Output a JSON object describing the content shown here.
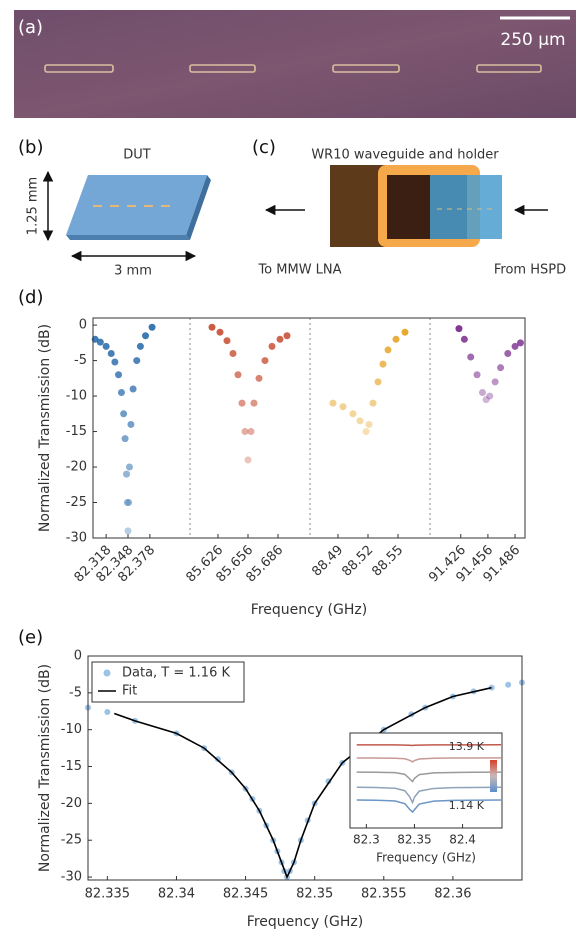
{
  "panel_labels": [
    "(a)",
    "(b)",
    "(c)",
    "(d)",
    "(e)"
  ],
  "micrograph": {
    "scale_bar": "250 μm"
  },
  "diagram_b": {
    "chip": "DUT",
    "height": "1.25 mm",
    "width": "3 mm"
  },
  "diagram_c": {
    "title": "WR10 waveguide and holder",
    "left": "To MMW LNA",
    "right": "From HSPD"
  },
  "chart_data": [
    {
      "type": "scatter",
      "y_label": "Normalized Transmission (dB)",
      "x_label": "Frequency (GHz)",
      "ylim": [
        -30,
        1
      ],
      "yticks": [
        0,
        -5,
        -10,
        -15,
        -20,
        -25,
        -30
      ],
      "panels": [
        {
          "xlim": [
            82.3,
            82.433
          ],
          "xticks": [
            82.318,
            82.348,
            82.378
          ],
          "series": [
            {
              "color": "#2f6fad",
              "x": [
                82.303,
                82.31,
                82.318,
                82.325,
                82.33,
                82.335,
                82.339,
                82.342,
                82.344,
                82.346,
                82.347,
                82.348,
                82.349,
                82.35,
                82.352,
                82.355,
                82.36,
                82.365,
                82.372,
                82.381
              ],
              "values": [
                -2.0,
                -2.4,
                -3.0,
                -4.0,
                -5.2,
                -7.0,
                -9.5,
                -12.5,
                -16,
                -21,
                -25,
                -29,
                -25,
                -20,
                -14,
                -9,
                -5,
                -3,
                -1.5,
                -0.3
              ]
            }
          ]
        },
        {
          "xlim": [
            85.598,
            85.718
          ],
          "xticks": [
            85.626,
            85.656,
            85.686
          ],
          "series": [
            {
              "color": "#c8533a",
              "x": [
                85.62,
                85.628,
                85.635,
                85.641,
                85.646,
                85.65,
                85.653,
                85.656,
                85.659,
                85.662,
                85.667,
                85.673,
                85.68,
                85.688,
                85.695
              ],
              "values": [
                -0.3,
                -1.0,
                -2.2,
                -4,
                -7,
                -11,
                -15,
                -19,
                -15,
                -11,
                -7.5,
                -5,
                -3,
                -2,
                -1.5
              ]
            }
          ]
        },
        {
          "xlim": [
            88.462,
            88.582
          ],
          "xticks": [
            88.49,
            88.52,
            88.55
          ],
          "series": [
            {
              "color": "#e6a526",
              "x": [
                88.485,
                88.495,
                88.505,
                88.512,
                88.518,
                88.521,
                88.525,
                88.53,
                88.535,
                88.54,
                88.548,
                88.557
              ],
              "values": [
                -11,
                -11.5,
                -12.5,
                -13.5,
                -15,
                -14,
                -11,
                -8,
                -5.5,
                -3.5,
                -2,
                -1
              ]
            }
          ]
        },
        {
          "xlim": [
            91.392,
            91.497
          ],
          "xticks": [
            91.426,
            91.456,
            91.486
          ],
          "series": [
            {
              "color": "#7b2d8e",
              "x": [
                91.424,
                91.43,
                91.437,
                91.444,
                91.45,
                91.454,
                91.458,
                91.464,
                91.47,
                91.478,
                91.486,
                91.492
              ],
              "values": [
                -0.5,
                -2,
                -4.5,
                -7,
                -9.5,
                -10.5,
                -10,
                -8,
                -6,
                -4,
                -3,
                -2.5
              ]
            }
          ]
        }
      ]
    },
    {
      "type": "scatter",
      "y_label": "Normalized Transmission (dB)",
      "x_label": "Frequency (GHz)",
      "xlim": [
        82.3336,
        82.365
      ],
      "xticks": [
        82.335,
        82.34,
        82.345,
        82.35,
        82.355,
        82.36
      ],
      "ylim": [
        -30.4,
        0
      ],
      "yticks": [
        0,
        -5,
        -10,
        -15,
        -20,
        -25,
        -30
      ],
      "legend": "upper left",
      "series": [
        {
          "name": "Data, T = 1.16 K",
          "style": "markers",
          "color": "#9cc3e6",
          "x": [
            82.3336,
            82.335,
            82.337,
            82.34,
            82.342,
            82.343,
            82.344,
            82.345,
            82.3455,
            82.346,
            82.3465,
            82.347,
            82.3473,
            82.3476,
            82.3478,
            82.348,
            82.3482,
            82.3485,
            82.349,
            82.3495,
            82.35,
            82.351,
            82.352,
            82.353,
            82.355,
            82.357,
            82.358,
            82.36,
            82.3615,
            82.3628,
            82.364,
            82.365
          ],
          "values": [
            -7.0,
            -7.6,
            -8.8,
            -10.5,
            -12.5,
            -14,
            -15.8,
            -18,
            -19.4,
            -21,
            -23,
            -25,
            -26.5,
            -28,
            -29.2,
            -30,
            -29.2,
            -28,
            -25,
            -22.3,
            -20,
            -17,
            -14.5,
            -12.6,
            -10,
            -7.9,
            -7,
            -5.5,
            -4.8,
            -4.3,
            -3.9,
            -3.6
          ]
        },
        {
          "name": "Fit",
          "style": "line",
          "color": "#000000",
          "x": [
            82.3355,
            82.337,
            82.34,
            82.342,
            82.344,
            82.345,
            82.346,
            82.347,
            82.3476,
            82.348,
            82.3485,
            82.349,
            82.35,
            82.352,
            82.355,
            82.358,
            82.36,
            82.3628
          ],
          "values": [
            -7.8,
            -8.8,
            -10.5,
            -12.5,
            -15.8,
            -18,
            -21,
            -25,
            -28,
            -30,
            -28,
            -25,
            -20,
            -14.5,
            -10,
            -7,
            -5.5,
            -4.3
          ]
        }
      ]
    },
    {
      "type": "line",
      "x_label": "Frequency (GHz)",
      "xlim": [
        82.283,
        82.441
      ],
      "xticks": [
        82.3,
        82.35,
        82.4
      ],
      "ylim": [
        -40,
        0
      ],
      "colorbar": {
        "max_label": "13.9 K",
        "min_label": "1.14 K"
      },
      "x": [
        82.29,
        82.31,
        82.33,
        82.34,
        82.345,
        82.348,
        82.35,
        82.355,
        82.37,
        82.39,
        82.41,
        82.44
      ],
      "series": [
        {
          "color": "#c0584a",
          "values": [
            -4.7,
            -4.7,
            -4.7,
            -4.8,
            -4.9,
            -5.0,
            -4.9,
            -4.8,
            -4.7,
            -4.7,
            -4.7,
            -4.6
          ]
        },
        {
          "color": "#c89a95",
          "values": [
            -11.6,
            -11.6,
            -11.7,
            -12.0,
            -12.8,
            -13.6,
            -12.9,
            -12.1,
            -11.7,
            -11.6,
            -11.6,
            -11.5
          ]
        },
        {
          "color": "#9a9a9a",
          "values": [
            -19.0,
            -19.1,
            -19.3,
            -20.2,
            -22.5,
            -24.0,
            -22.3,
            -20.3,
            -19.4,
            -19.2,
            -19.1,
            -19.0
          ]
        },
        {
          "color": "#8ea3b8",
          "values": [
            -27.0,
            -27.1,
            -27.5,
            -28.8,
            -32.0,
            -35.0,
            -32.2,
            -29.0,
            -27.6,
            -27.2,
            -27.1,
            -27.0
          ]
        },
        {
          "color": "#6b96c6",
          "values": [
            -33.7,
            -33.8,
            -34.2,
            -35.6,
            -38.6,
            -40.0,
            -38.8,
            -35.8,
            -34.3,
            -33.9,
            -33.8,
            -33.7
          ]
        }
      ]
    }
  ]
}
